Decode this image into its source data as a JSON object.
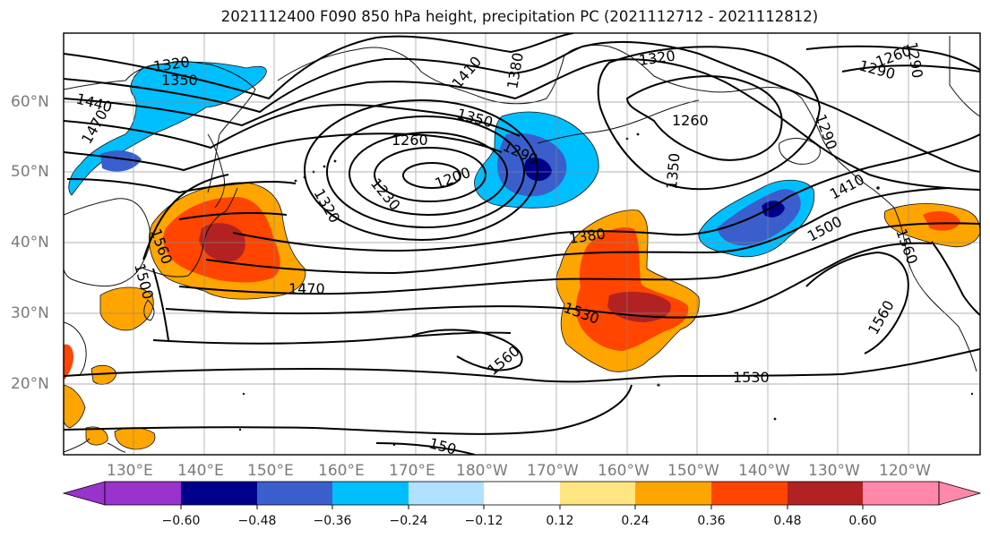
{
  "title": "2021112400 F090 850 hPa height, precipitation PC (2021112712 - 2021112812)",
  "lat_labels": [
    "60°N",
    "50°N",
    "40°N",
    "30°N",
    "20°N"
  ],
  "lon_labels": [
    "130°E",
    "140°E",
    "150°E",
    "160°E",
    "170°E",
    "180°W",
    "170°W",
    "160°W",
    "150°W",
    "140°W",
    "130°W",
    "120°W"
  ],
  "contour_labels": [
    "1320",
    "1350",
    "1440",
    "1470",
    "1410",
    "1380",
    "1320",
    "1290",
    "1260",
    "1290",
    "1260",
    "1350",
    "1290",
    "1260",
    "1200",
    "1230",
    "1320",
    "1290",
    "1350",
    "1410",
    "1380",
    "1500",
    "1560",
    "1500",
    "1470",
    "1530",
    "1560",
    "1560",
    "1530",
    "1560",
    "150"
  ],
  "colorbar": {
    "ticks": [
      "−0.60",
      "−0.48",
      "−0.36",
      "−0.24",
      "−0.12",
      "0.12",
      "0.24",
      "0.36",
      "0.48",
      "0.60"
    ],
    "colors": [
      "#9933cc",
      "#00008b",
      "#3a5fcd",
      "#00bfff",
      "#b0e2ff",
      "#ffffff",
      "#ffe680",
      "#ffa500",
      "#ff4500",
      "#b22222",
      "#ff88aa"
    ]
  },
  "colors": {
    "neg_strong": "#00008b",
    "neg_mid": "#3a5fcd",
    "neg_light": "#00bfff",
    "pos_light": "#ffa500",
    "pos_mid": "#ff4500",
    "pos_strong": "#b22222",
    "pos_pale": "#ffe680"
  }
}
